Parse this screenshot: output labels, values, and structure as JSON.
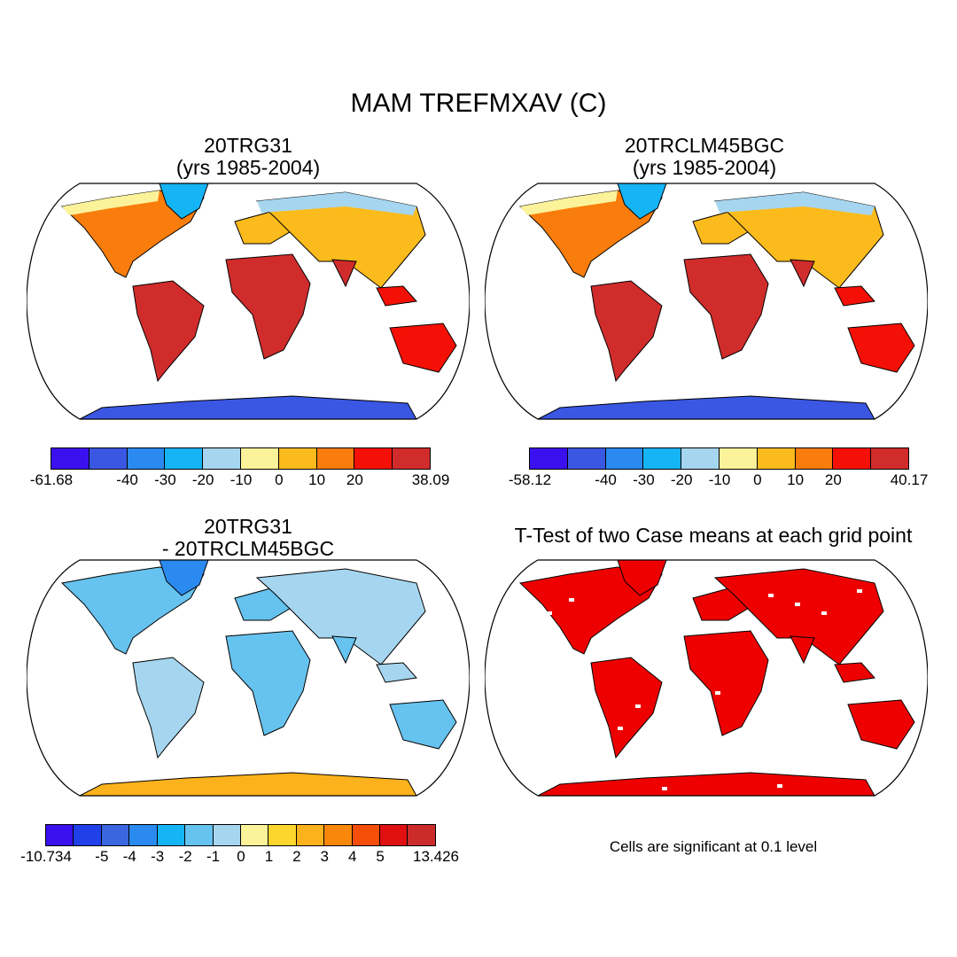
{
  "figure": {
    "title": "MAM TREFMXAV (C)",
    "note": "Cells are significant at 0.1 level"
  },
  "colors": {
    "ocean": "#ffffff",
    "coast": "#000000",
    "significant": "#ee0000"
  },
  "chart_data": [
    {
      "type": "heatmap",
      "projection": "Robinson",
      "title_line1": "20TRG31",
      "title_line2": "(yrs 1985-2004)",
      "variable": "TREFMXAV",
      "units": "C",
      "season": "MAM",
      "colorbar": {
        "min_label": "-61.68",
        "max_label": "38.09",
        "tick_labels": [
          "-61.68",
          "-40",
          "-30",
          "-20",
          "-10",
          "0",
          "10",
          "20",
          "38.09"
        ],
        "colors": [
          "#3b10ee",
          "#3a57e3",
          "#2a8af0",
          "#15b4f4",
          "#a6d6ef",
          "#fcf29a",
          "#fcbb1c",
          "#f97d0c",
          "#f41006",
          "#d02c2c"
        ]
      }
    },
    {
      "type": "heatmap",
      "projection": "Robinson",
      "title_line1": "20TRCLM45BGC",
      "title_line2": "(yrs 1985-2004)",
      "variable": "TREFMXAV",
      "units": "C",
      "season": "MAM",
      "colorbar": {
        "min_label": "-58.12",
        "max_label": "40.17",
        "tick_labels": [
          "-58.12",
          "-40",
          "-30",
          "-20",
          "-10",
          "0",
          "10",
          "20",
          "40.17"
        ],
        "colors": [
          "#3b10ee",
          "#3a57e3",
          "#2a8af0",
          "#15b4f4",
          "#a6d6ef",
          "#fcf29a",
          "#fcbb1c",
          "#f97d0c",
          "#f41006",
          "#d02c2c"
        ]
      }
    },
    {
      "type": "heatmap",
      "projection": "Robinson",
      "title_line1": "20TRG31",
      "title_line2": "- 20TRCLM45BGC",
      "variable": "TREFMXAV difference",
      "units": "C",
      "colorbar": {
        "min_label": "-10.734",
        "max_label": "13.426",
        "tick_labels": [
          "-10.734",
          "-5",
          "-4",
          "-3",
          "-2",
          "-1",
          "0",
          "1",
          "2",
          "3",
          "4",
          "5",
          "13.426"
        ],
        "colors": [
          "#3b10ee",
          "#2040ea",
          "#3a67e0",
          "#2a8af0",
          "#15b4f4",
          "#66c2ee",
          "#a6d6ef",
          "#fcf29a",
          "#fcd62c",
          "#fcb21c",
          "#f9870c",
          "#f44e08",
          "#e01010",
          "#cc2b2b"
        ]
      }
    },
    {
      "type": "heatmap",
      "projection": "Robinson",
      "title_line1": "T-Test of two Case means at each grid point",
      "significance_level": 0.1,
      "legend": "Cells are significant at 0.1 level"
    }
  ]
}
